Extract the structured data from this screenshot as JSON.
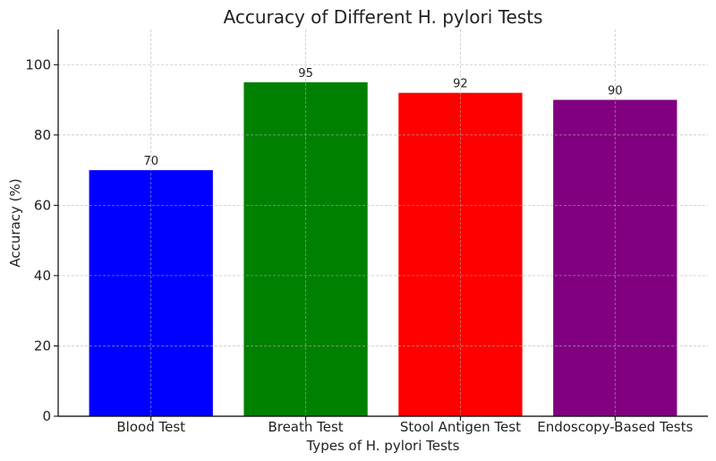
{
  "chart_data": {
    "type": "bar",
    "title": "Accuracy of Different H. pylori Tests",
    "xlabel": "Types of H. pylori Tests",
    "ylabel": "Accuracy (%)",
    "categories": [
      "Blood Test",
      "Breath Test",
      "Stool Antigen Test",
      "Endoscopy-Based Tests"
    ],
    "values": [
      70,
      95,
      92,
      90
    ],
    "data_labels": [
      "70",
      "95",
      "92",
      "90"
    ],
    "colors": [
      "#0000ff",
      "#008000",
      "#ff0000",
      "#800080"
    ],
    "ylim": [
      0,
      110
    ],
    "yticks": [
      0,
      20,
      40,
      60,
      80,
      100
    ],
    "ytick_labels": [
      "0",
      "20",
      "40",
      "60",
      "80",
      "100"
    ],
    "grid": true,
    "legend": "none"
  }
}
